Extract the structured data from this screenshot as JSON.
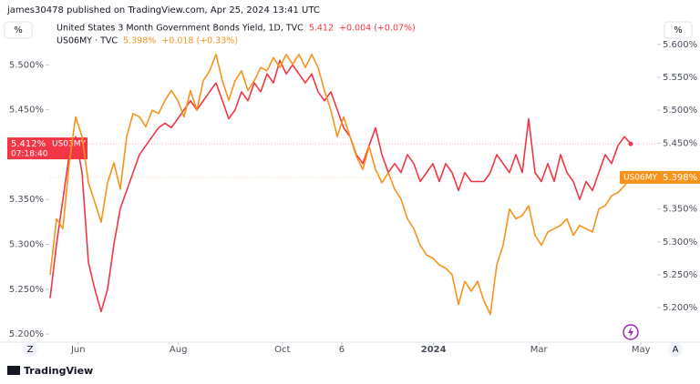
{
  "header": {
    "publisher": "james30478 published on TradingView.com, Apr 25, 2024 13:41 UTC",
    "unit_left": "%",
    "unit_right": "%",
    "footer": "TradingView",
    "button_left": "Z",
    "button_right": "A"
  },
  "chart_data": {
    "type": "line",
    "series": [
      {
        "name": "US03MY",
        "title": "United States 3 Month Government Bonds Yield, 1D, TVC",
        "last": "5.412",
        "change": "+0.004 (+0.07%)",
        "price_label": "5.412%",
        "countdown": "07:18:40",
        "color": "#f23645",
        "axis": "y",
        "values": [
          5.24,
          5.3,
          5.35,
          5.4,
          5.42,
          5.38,
          5.28,
          5.25,
          5.225,
          5.25,
          5.3,
          5.34,
          5.36,
          5.38,
          5.4,
          5.41,
          5.42,
          5.43,
          5.435,
          5.43,
          5.44,
          5.45,
          5.46,
          5.45,
          5.46,
          5.47,
          5.48,
          5.46,
          5.44,
          5.45,
          5.47,
          5.46,
          5.48,
          5.47,
          5.49,
          5.48,
          5.505,
          5.49,
          5.5,
          5.49,
          5.48,
          5.49,
          5.47,
          5.46,
          5.47,
          5.45,
          5.43,
          5.42,
          5.4,
          5.39,
          5.41,
          5.43,
          5.4,
          5.38,
          5.39,
          5.38,
          5.4,
          5.39,
          5.37,
          5.38,
          5.39,
          5.37,
          5.39,
          5.38,
          5.36,
          5.38,
          5.37,
          5.37,
          5.37,
          5.38,
          5.4,
          5.39,
          5.38,
          5.4,
          5.38,
          5.44,
          5.38,
          5.37,
          5.39,
          5.37,
          5.4,
          5.38,
          5.37,
          5.35,
          5.37,
          5.36,
          5.38,
          5.4,
          5.39,
          5.41,
          5.42,
          5.412
        ]
      },
      {
        "name": "US06MY",
        "title": "US06MY · TVC",
        "last": "5.398%",
        "change": "+0.018 (+0.33%)",
        "price_label": "5.398%",
        "color": "#f7931a",
        "axis": "y2",
        "values": [
          5.25,
          5.335,
          5.32,
          5.42,
          5.49,
          5.46,
          5.39,
          5.36,
          5.33,
          5.39,
          5.42,
          5.38,
          5.46,
          5.495,
          5.49,
          5.475,
          5.5,
          5.495,
          5.515,
          5.53,
          5.515,
          5.49,
          5.53,
          5.5,
          5.545,
          5.56,
          5.585,
          5.545,
          5.515,
          5.545,
          5.56,
          5.53,
          5.545,
          5.565,
          5.56,
          5.58,
          5.565,
          5.585,
          5.57,
          5.585,
          5.565,
          5.585,
          5.565,
          5.53,
          5.5,
          5.46,
          5.49,
          5.46,
          5.43,
          5.41,
          5.445,
          5.41,
          5.39,
          5.405,
          5.38,
          5.365,
          5.335,
          5.32,
          5.295,
          5.28,
          5.275,
          5.265,
          5.26,
          5.25,
          5.205,
          5.24,
          5.225,
          5.24,
          5.21,
          5.19,
          5.265,
          5.295,
          5.35,
          5.335,
          5.34,
          5.355,
          5.31,
          5.295,
          5.315,
          5.32,
          5.325,
          5.335,
          5.31,
          5.325,
          5.32,
          5.315,
          5.35,
          5.355,
          5.37,
          5.375,
          5.385,
          5.398
        ]
      }
    ],
    "xlim": [
      0,
      95
    ],
    "xticks": [
      {
        "value": 4.4,
        "label": "Jun"
      },
      {
        "value": 20.1,
        "label": "Aug"
      },
      {
        "value": 36.4,
        "label": "Oct"
      },
      {
        "value": 45.7,
        "label": "6"
      },
      {
        "value": 60.1,
        "label": "2024"
      },
      {
        "value": 76.6,
        "label": "Mar"
      },
      {
        "value": 92.6,
        "label": "May"
      }
    ],
    "ylim": [
      5.192,
      5.547
    ],
    "yticks": [
      {
        "value": 5.2,
        "label": "5.200%"
      },
      {
        "value": 5.25,
        "label": "5.250%"
      },
      {
        "value": 5.3,
        "label": "5.300%"
      },
      {
        "value": 5.35,
        "label": "5.350%"
      },
      {
        "value": 5.45,
        "label": "5.450%"
      },
      {
        "value": 5.5,
        "label": "5.500%"
      }
    ],
    "y2lim": [
      5.149,
      5.633
    ],
    "y2ticks": [
      {
        "value": 5.2,
        "label": "5.200%"
      },
      {
        "value": 5.25,
        "label": "5.250%"
      },
      {
        "value": 5.3,
        "label": "5.300%"
      },
      {
        "value": 5.35,
        "label": "5.350%"
      },
      {
        "value": 5.45,
        "label": "5.450%"
      },
      {
        "value": 5.5,
        "label": "5.500%"
      },
      {
        "value": 5.55,
        "label": "5.550%"
      },
      {
        "value": 5.6,
        "label": "5.600%"
      }
    ]
  }
}
